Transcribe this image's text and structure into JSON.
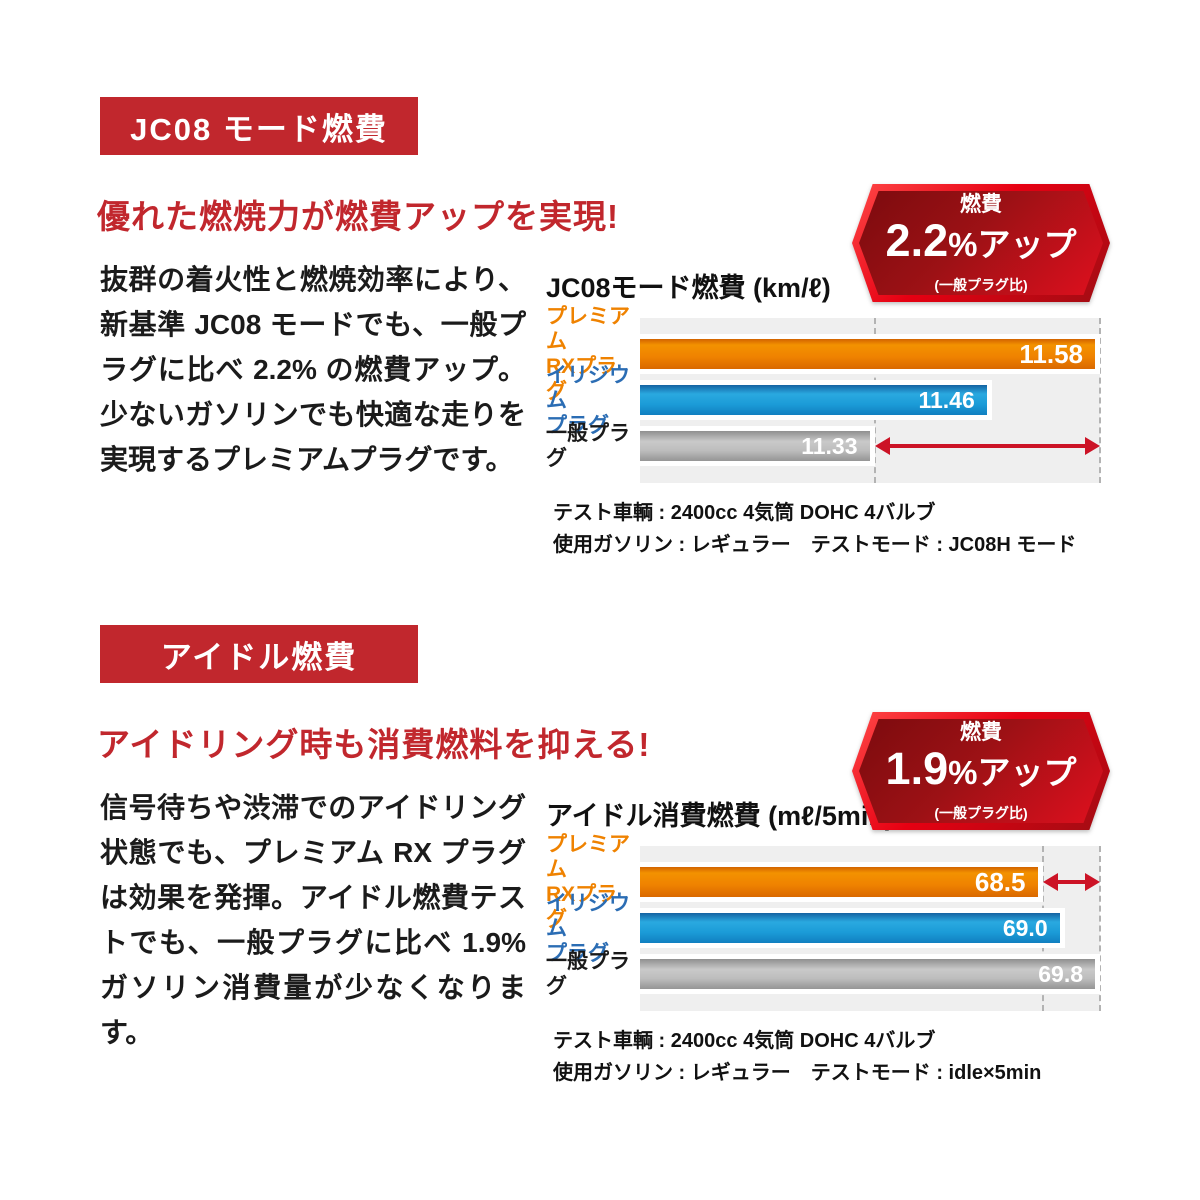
{
  "colors": {
    "accent_red": "#c1272d",
    "hex_bright": "#e60012",
    "hex_dark": "#7c0b0e",
    "arrow_red": "#cc1326",
    "panel_bg": "#efefef",
    "dash_color": "#b3b3b3",
    "orange_label": "#ef8200",
    "blue_label": "#2b6db4",
    "bar_orange": "#ef7a00",
    "bar_blue": "#1f9ad6",
    "bar_gray": "#b5b5b5"
  },
  "sections": [
    {
      "badge_label": "JC08 モード燃費",
      "headline": "優れた燃焼力が燃費アップを実現!",
      "body_text": "抜群の着火性と燃焼効率により、新基準 JC08 モードでも、一般プラグに比べ 2.2% の燃費アップ。少ないガソリンでも快適な走りを実現するプレミアムプラグです。",
      "chart_title": "JC08モード燃費 (km/ℓ)",
      "badge_hex": {
        "top_label": "燃費",
        "value": "2.2",
        "suffix": "%アップ",
        "sub_label": "(一般プラグ比)"
      },
      "notes": [
        "テスト車輌 : 2400cc 4気筒 DOHC 4バルブ",
        "使用ガソリン : レギュラー　テストモード : JC08H モード"
      ]
    },
    {
      "badge_label": "アイドル燃費",
      "headline": "アイドリング時も消費燃料を抑える!",
      "body_text": "信号待ちや渋滞でのアイドリング状態でも、プレミアム RX プラグは効果を発揮。アイドル燃費テストでも、一般プラグに比べ 1.9% ガソリン消費量が少なくなります。",
      "chart_title": "アイドル消費燃費 (mℓ/5min)",
      "badge_hex": {
        "top_label": "燃費",
        "value": "1.9",
        "suffix": "%アップ",
        "sub_label": "(一般プラグ比)"
      },
      "notes": [
        "テスト車輌 : 2400cc 4気筒 DOHC 4バルブ",
        "使用ガソリン : レギュラー　テストモード : idle×5min"
      ]
    }
  ],
  "chart_data": [
    {
      "type": "bar",
      "orientation": "horizontal",
      "title": "JC08モード燃費 (km/ℓ)",
      "unit": "km/ℓ",
      "categories": [
        "プレミアム RXプラグ",
        "イリジウム プラグ",
        "一般プラグ"
      ],
      "category_lines": [
        [
          "プレミアム",
          "RXプラグ"
        ],
        [
          "イリジウム",
          "プラグ"
        ],
        [
          "一般プラグ"
        ]
      ],
      "values": [
        11.58,
        11.46,
        11.33
      ],
      "value_labels": [
        "11.58",
        "11.46",
        "11.33"
      ],
      "series_colors": [
        "orange",
        "blue",
        "gray"
      ],
      "xlim": [
        11.07,
        11.58
      ],
      "grid": "dashed-vertical",
      "dashed_at": [
        11.33,
        11.58
      ],
      "diff_arrow": {
        "from": 11.33,
        "to": 11.58,
        "row": 2
      }
    },
    {
      "type": "bar",
      "orientation": "horizontal",
      "title": "アイドル消費燃費 (mℓ/5min)",
      "unit": "mℓ/5min",
      "categories": [
        "プレミアム RXプラグ",
        "イリジウム プラグ",
        "一般プラグ"
      ],
      "category_lines": [
        [
          "プレミアム",
          "RXプラグ"
        ],
        [
          "イリジウム",
          "プラグ"
        ],
        [
          "一般プラグ"
        ]
      ],
      "values": [
        68.5,
        69.0,
        69.8
      ],
      "value_labels": [
        "68.5",
        "69.0",
        "69.8"
      ],
      "series_colors": [
        "orange",
        "blue",
        "gray"
      ],
      "xlim": [
        59.4,
        69.8
      ],
      "grid": "dashed-vertical",
      "dashed_at": [
        68.5,
        69.8
      ],
      "diff_arrow": {
        "from": 68.5,
        "to": 69.8,
        "row": 0
      }
    }
  ]
}
